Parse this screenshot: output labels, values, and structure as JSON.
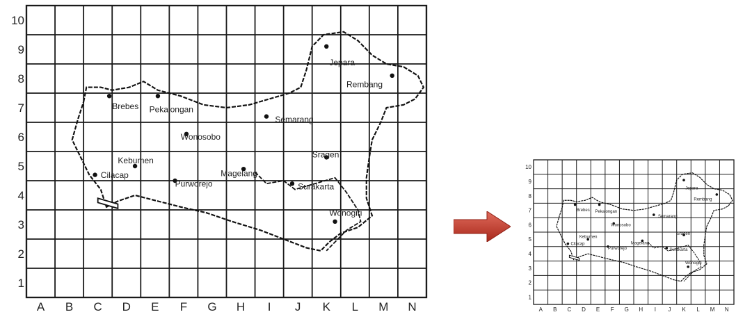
{
  "grid": {
    "columns": [
      "A",
      "B",
      "C",
      "D",
      "E",
      "F",
      "G",
      "H",
      "I",
      "J",
      "K",
      "L",
      "M",
      "N"
    ],
    "rows": [
      "1",
      "2",
      "3",
      "4",
      "5",
      "6",
      "7",
      "8",
      "9",
      "10"
    ]
  },
  "cities": [
    {
      "name": "Brebes",
      "col": "C",
      "row": 7
    },
    {
      "name": "Pekalongan",
      "col": "E",
      "row": 7
    },
    {
      "name": "Wonosobo",
      "col": "F",
      "row": 6
    },
    {
      "name": "Semarang",
      "col": "I",
      "row": 6
    },
    {
      "name": "Jepara",
      "col": "K",
      "row": 9
    },
    {
      "name": "Rembang",
      "col": "M",
      "row": 8
    },
    {
      "name": "Kebumen",
      "col": "D",
      "row": 5
    },
    {
      "name": "Cilacap",
      "col": "C",
      "row": 4
    },
    {
      "name": "Purworejo",
      "col": "F",
      "row": 4
    },
    {
      "name": "Magelang",
      "col": "H",
      "row": 5
    },
    {
      "name": "Surakarta",
      "col": "J",
      "row": 4
    },
    {
      "name": "Sragen",
      "col": "K",
      "row": 5
    },
    {
      "name": "Wonogiri",
      "col": "K",
      "row": 3
    }
  ],
  "large_labels": [
    "Brebes",
    "Pekalongan",
    "Wonosobo",
    "Semarang",
    "Jepara",
    "Rembang",
    "Kebumen",
    "Cilacap",
    "Purworejo",
    "Magelang",
    "Surakarta",
    "Sragen",
    "Wonogiri"
  ],
  "small_labels": [
    "Brebes",
    "Pekalongan",
    "Wonosobo",
    "Semarang",
    "Jepara",
    "Rembang",
    "Kebumen",
    "Cilacap",
    "Purworejo",
    "Magelang",
    "Surakarta",
    "Sragen",
    "Wonogiri"
  ],
  "colors": {
    "grid": "#1a1a1a",
    "arrow": "#c0392b",
    "background": "#ffffff"
  },
  "icons": {
    "arrow": "right-arrow-icon"
  }
}
